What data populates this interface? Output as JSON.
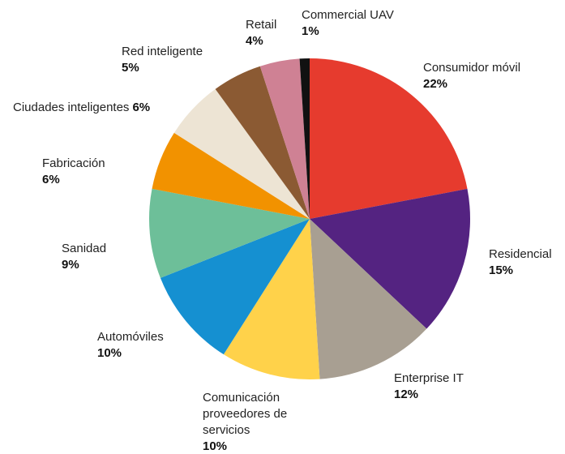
{
  "chart_data": {
    "type": "pie",
    "categories": [
      "Consumidor móvil",
      "Residencial",
      "Enterprise IT",
      "Comunicación proveedores de servicios",
      "Automóviles",
      "Sanidad",
      "Fabricación",
      "Ciudades inteligentes",
      "Red inteligente",
      "Retail",
      "Commercial UAV"
    ],
    "values": [
      22,
      15,
      12,
      10,
      10,
      9,
      6,
      6,
      5,
      4,
      1
    ],
    "value_labels": [
      "22%",
      "15%",
      "12%",
      "10%",
      "10%",
      "9%",
      "6%",
      "6%",
      "5%",
      "4%",
      "1%"
    ],
    "colors": [
      "#e63b2e",
      "#542381",
      "#a89f92",
      "#ffd24a",
      "#1590d1",
      "#6dbf99",
      "#f29200",
      "#ede4d4",
      "#8b5a33",
      "#cf8194",
      "#111111"
    ]
  }
}
